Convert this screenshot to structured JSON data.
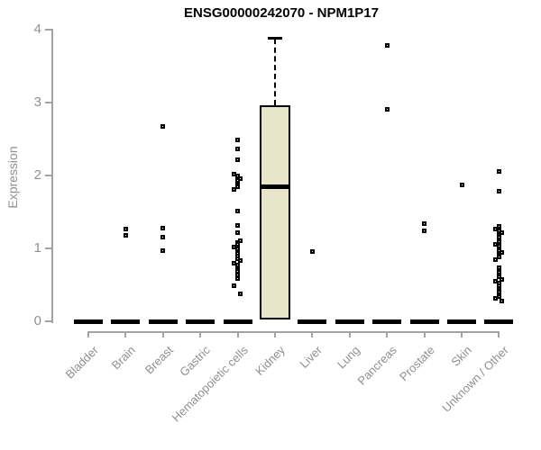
{
  "title": "ENSG00000242070 - NPM1P17",
  "chart_data": {
    "type": "boxplot",
    "title": "ENSG00000242070 - NPM1P17",
    "ylabel": "Expression",
    "xlabel": "",
    "ylim": [
      0,
      4
    ],
    "yticks": [
      "0",
      "1",
      "2",
      "3",
      "4"
    ],
    "grid": "off",
    "legend": "none",
    "categories": [
      "Bladder",
      "Brain",
      "Breast",
      "Gastric",
      "Hematopoietic cells",
      "Kidney",
      "Liver",
      "Lung",
      "Pancreas",
      "Prostate",
      "Skin",
      "Unknown / Other"
    ],
    "boxes": [
      {
        "category": "Bladder",
        "median": 0,
        "collapsed": true
      },
      {
        "category": "Brain",
        "median": 0,
        "collapsed": true
      },
      {
        "category": "Breast",
        "median": 0,
        "collapsed": true
      },
      {
        "category": "Gastric",
        "median": 0,
        "collapsed": true
      },
      {
        "category": "Hematopoietic cells",
        "median": 0,
        "collapsed": true
      },
      {
        "category": "Kidney",
        "q1": 0.02,
        "median": 1.85,
        "q3": 2.96,
        "whisker_high": 3.88,
        "whisker_low": 0.02,
        "collapsed": false
      },
      {
        "category": "Liver",
        "median": 0,
        "collapsed": true
      },
      {
        "category": "Lung",
        "median": 0,
        "collapsed": true
      },
      {
        "category": "Pancreas",
        "median": 0,
        "collapsed": true
      },
      {
        "category": "Prostate",
        "median": 0,
        "collapsed": true
      },
      {
        "category": "Skin",
        "median": 0,
        "collapsed": true
      },
      {
        "category": "Unknown / Other",
        "median": 0,
        "collapsed": true
      }
    ],
    "outliers": {
      "Brain": [
        1.27,
        1.18
      ],
      "Breast": [
        2.67,
        1.28,
        1.16,
        0.97
      ],
      "Hematopoietic cells": [
        2.49,
        2.37,
        2.21,
        2.02,
        1.99,
        1.96,
        1.93,
        1.9,
        1.87,
        1.84,
        1.81,
        1.51,
        1.32,
        1.22,
        1.11,
        1.08,
        1.05,
        1.02,
        0.99,
        0.96,
        0.93,
        0.89,
        0.86,
        0.83,
        0.8,
        0.77,
        0.74,
        0.71,
        0.68,
        0.64,
        0.59,
        0.49,
        0.38
      ],
      "Liver": [
        0.96
      ],
      "Pancreas": [
        3.79,
        2.91
      ],
      "Prostate": [
        1.34,
        1.24
      ],
      "Skin": [
        1.87
      ],
      "Unknown / Other": [
        2.05,
        1.79,
        1.3,
        1.27,
        1.24,
        1.21,
        1.18,
        1.15,
        1.12,
        1.09,
        1.06,
        1.03,
        1.0,
        0.97,
        0.94,
        0.91,
        0.88,
        0.85,
        0.73,
        0.7,
        0.67,
        0.64,
        0.61,
        0.58,
        0.55,
        0.52,
        0.49,
        0.43,
        0.4,
        0.37,
        0.34,
        0.31,
        0.28
      ]
    },
    "colors": {
      "box_fill": "#E9E5CB",
      "box_border": "#000000",
      "median": "#000000",
      "point": "#000000",
      "axis": "#A3A3A3",
      "tick_label": "#8F8F8F",
      "title": "#000000",
      "background": "#FFFFFF"
    }
  }
}
